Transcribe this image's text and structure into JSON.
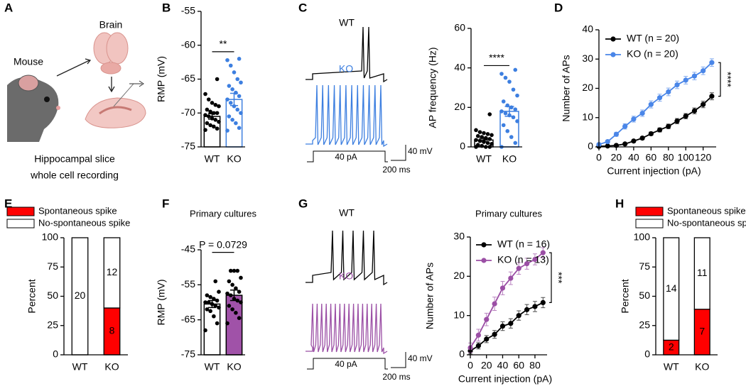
{
  "panel_labels": [
    "A",
    "B",
    "C",
    "D",
    "E",
    "F",
    "G",
    "H"
  ],
  "diagram": {
    "mouse": "Mouse",
    "brain": "Brain",
    "caption": [
      "Hippocampal slice",
      "whole cell recording"
    ]
  },
  "traces": [
    {
      "wt": "WT",
      "ko": "KO",
      "wt_color": "#000000",
      "ko_color": "#3d7fe0",
      "stimulus": "40 pA",
      "voltage_scale": "40 mV",
      "time_scale": "200 ms"
    },
    {
      "wt": "WT",
      "ko": "KO",
      "wt_color": "#000000",
      "ko_color": "#9b4fa5",
      "stimulus": "40 pA",
      "voltage_scale": "40 mV",
      "time_scale": "200 ms"
    }
  ],
  "chart_data": [
    {
      "type": "bar_dots",
      "ylabel": "RMP (mV)",
      "categories": [
        "WT",
        "KO"
      ],
      "values": [
        -70.5,
        -68
      ],
      "errors": [
        0.4,
        0.9
      ],
      "colors": [
        "#000000",
        "#3d7fe0"
      ],
      "fills": [
        "#ffffff",
        "#ffffff"
      ],
      "dot_colors": [
        "#000000",
        "#3d7fe0"
      ],
      "dots": [
        [
          -72.5,
          -72.3,
          -72,
          -71.8,
          -71.5,
          -71.3,
          -71,
          -70.8,
          -70.5,
          -70.3,
          -70,
          -70,
          -69.8,
          -69.5,
          -69,
          -68.8,
          -68.5,
          -68,
          -67.2,
          -65
        ],
        [
          -72.6,
          -72.2,
          -71.5,
          -71,
          -70.5,
          -70,
          -69.5,
          -69,
          -68.5,
          -68,
          -67.5,
          -67,
          -66.5,
          -66,
          -65.5,
          -65,
          -64,
          -63,
          -62.2,
          -62
        ]
      ],
      "ylim": [
        -75,
        -55
      ],
      "yticks": [
        -75,
        -70,
        -65,
        -60,
        -55
      ],
      "significance": "**"
    },
    {
      "type": "bar_dots",
      "ylabel": "AP frequency (Hz)",
      "categories": [
        "WT",
        "KO"
      ],
      "values": [
        3.5,
        18
      ],
      "errors": [
        0.8,
        2.5
      ],
      "colors": [
        "#000000",
        "#3d7fe0"
      ],
      "fills": [
        "#ffffff",
        "#ffffff"
      ],
      "dot_colors": [
        "#000000",
        "#3d7fe0"
      ],
      "dots": [
        [
          0,
          0,
          0,
          0.5,
          1,
          1.5,
          2,
          2.5,
          3,
          3.5,
          4,
          4.5,
          5,
          5.5,
          6,
          6.5,
          7,
          7.5,
          8.5,
          16.5
        ],
        [
          0,
          2,
          5,
          8,
          11,
          13,
          15,
          16,
          17,
          18,
          19,
          20,
          21,
          23,
          26,
          29,
          33,
          35,
          37,
          39
        ]
      ],
      "ylim": [
        0,
        60
      ],
      "yticks": [
        0,
        20,
        40,
        60
      ],
      "significance": "****"
    },
    {
      "type": "line",
      "xlabel": "Current injection (pA)",
      "ylabel": "Number of APs",
      "x": [
        0,
        10,
        20,
        30,
        40,
        50,
        60,
        70,
        80,
        90,
        100,
        110,
        120,
        130
      ],
      "series": [
        {
          "name": "WT (n = 20)",
          "color": "#000000",
          "values": [
            0.2,
            0.3,
            0.5,
            1,
            2,
            3,
            4.5,
            5.8,
            7,
            8.8,
            10.5,
            12.3,
            14.5,
            17.3
          ],
          "errors": [
            0.1,
            0.1,
            0.2,
            0.3,
            0.4,
            0.5,
            0.6,
            0.7,
            0.8,
            0.9,
            0.9,
            1,
            1.1,
            1.2
          ]
        },
        {
          "name": "KO (n = 20)",
          "color": "#4a86e8",
          "values": [
            0.8,
            1.8,
            4.3,
            7,
            9.5,
            11.5,
            14.5,
            16.8,
            18.8,
            21.2,
            22.8,
            24.2,
            26,
            28.8
          ],
          "errors": [
            0.3,
            0.5,
            0.7,
            0.9,
            1,
            1.1,
            1.2,
            1.2,
            1.3,
            1.3,
            1.3,
            1.3,
            1.3,
            1.3
          ]
        }
      ],
      "xlim": [
        0,
        135
      ],
      "xticks": [
        0,
        20,
        40,
        60,
        80,
        100,
        120
      ],
      "ylim": [
        0,
        40
      ],
      "yticks": [
        0,
        10,
        20,
        30,
        40
      ],
      "significance": "****"
    },
    {
      "type": "stacked_bar",
      "ylabel": "Percent",
      "categories": [
        "WT",
        "KO"
      ],
      "series": [
        {
          "name": "Spontaneous spike",
          "color": "#ff0000",
          "values": [
            0,
            40
          ],
          "counts": [
            null,
            8
          ]
        },
        {
          "name": "No-spontaneous spike",
          "color": "#ffffff",
          "values": [
            100,
            60
          ],
          "counts": [
            20,
            12
          ]
        }
      ],
      "ylim": [
        0,
        100
      ],
      "yticks": [
        0,
        25,
        50,
        75,
        100
      ]
    },
    {
      "type": "bar_dots",
      "title": "Primary cultures",
      "ylabel": "RMP (mV)",
      "categories": [
        "WT",
        "KO"
      ],
      "values": [
        -60.5,
        -58
      ],
      "errors": [
        1,
        1.5
      ],
      "colors": [
        "#000000",
        "#000000"
      ],
      "fills": [
        "#ffffff",
        "#a052a8"
      ],
      "dot_colors": [
        "#000000",
        "#000000"
      ],
      "dots": [
        [
          -68,
          -66,
          -64,
          -62.5,
          -62,
          -61.5,
          -61,
          -60.5,
          -60,
          -60,
          -59.5,
          -59,
          -58.5,
          -58,
          -57,
          -54
        ],
        [
          -66,
          -64.5,
          -63,
          -62,
          -61,
          -60,
          -59.5,
          -59,
          -58,
          -57.5,
          -57,
          -56,
          -55,
          -54,
          -53,
          -51,
          -51,
          -51
        ]
      ],
      "ylim": [
        -75,
        -45
      ],
      "yticks": [
        -75,
        -65,
        -55,
        -45
      ],
      "significance": "P = 0.0729"
    },
    {
      "type": "line",
      "title": "Primary cultures",
      "xlabel": "Current injection (pA)",
      "ylabel": "Number of APs",
      "x": [
        0,
        10,
        20,
        30,
        40,
        50,
        60,
        70,
        80,
        90
      ],
      "series": [
        {
          "name": "WT (n = 16)",
          "color": "#000000",
          "values": [
            1,
            2.3,
            4,
            5.2,
            7.3,
            8,
            10,
            11.5,
            12.3,
            13.3
          ],
          "errors": [
            0.8,
            0.8,
            0.9,
            1,
            1.1,
            1.2,
            1.2,
            1.3,
            1.3,
            1.3
          ]
        },
        {
          "name": "KO (n = 13)",
          "color": "#9b4fa5",
          "values": [
            1.8,
            5,
            9,
            13,
            17,
            19.5,
            22,
            23.2,
            24.3,
            26
          ],
          "errors": [
            1.2,
            1.5,
            1.6,
            1.7,
            1.7,
            1.6,
            1.5,
            1.4,
            1.4,
            1.3
          ]
        }
      ],
      "xlim": [
        0,
        95
      ],
      "xticks": [
        0,
        20,
        40,
        60,
        80
      ],
      "ylim": [
        0,
        30
      ],
      "yticks": [
        0,
        10,
        20,
        30
      ],
      "significance": "***"
    },
    {
      "type": "stacked_bar",
      "ylabel": "Percent",
      "categories": [
        "WT",
        "KO"
      ],
      "series": [
        {
          "name": "Spontaneous spike",
          "color": "#ff0000",
          "values": [
            12.5,
            38.9
          ],
          "counts": [
            2,
            7
          ]
        },
        {
          "name": "No-spontaneous spike",
          "color": "#ffffff",
          "values": [
            87.5,
            61.1
          ],
          "counts": [
            14,
            11
          ]
        }
      ],
      "ylim": [
        0,
        100
      ],
      "yticks": [
        0,
        25,
        50,
        75,
        100
      ]
    }
  ]
}
